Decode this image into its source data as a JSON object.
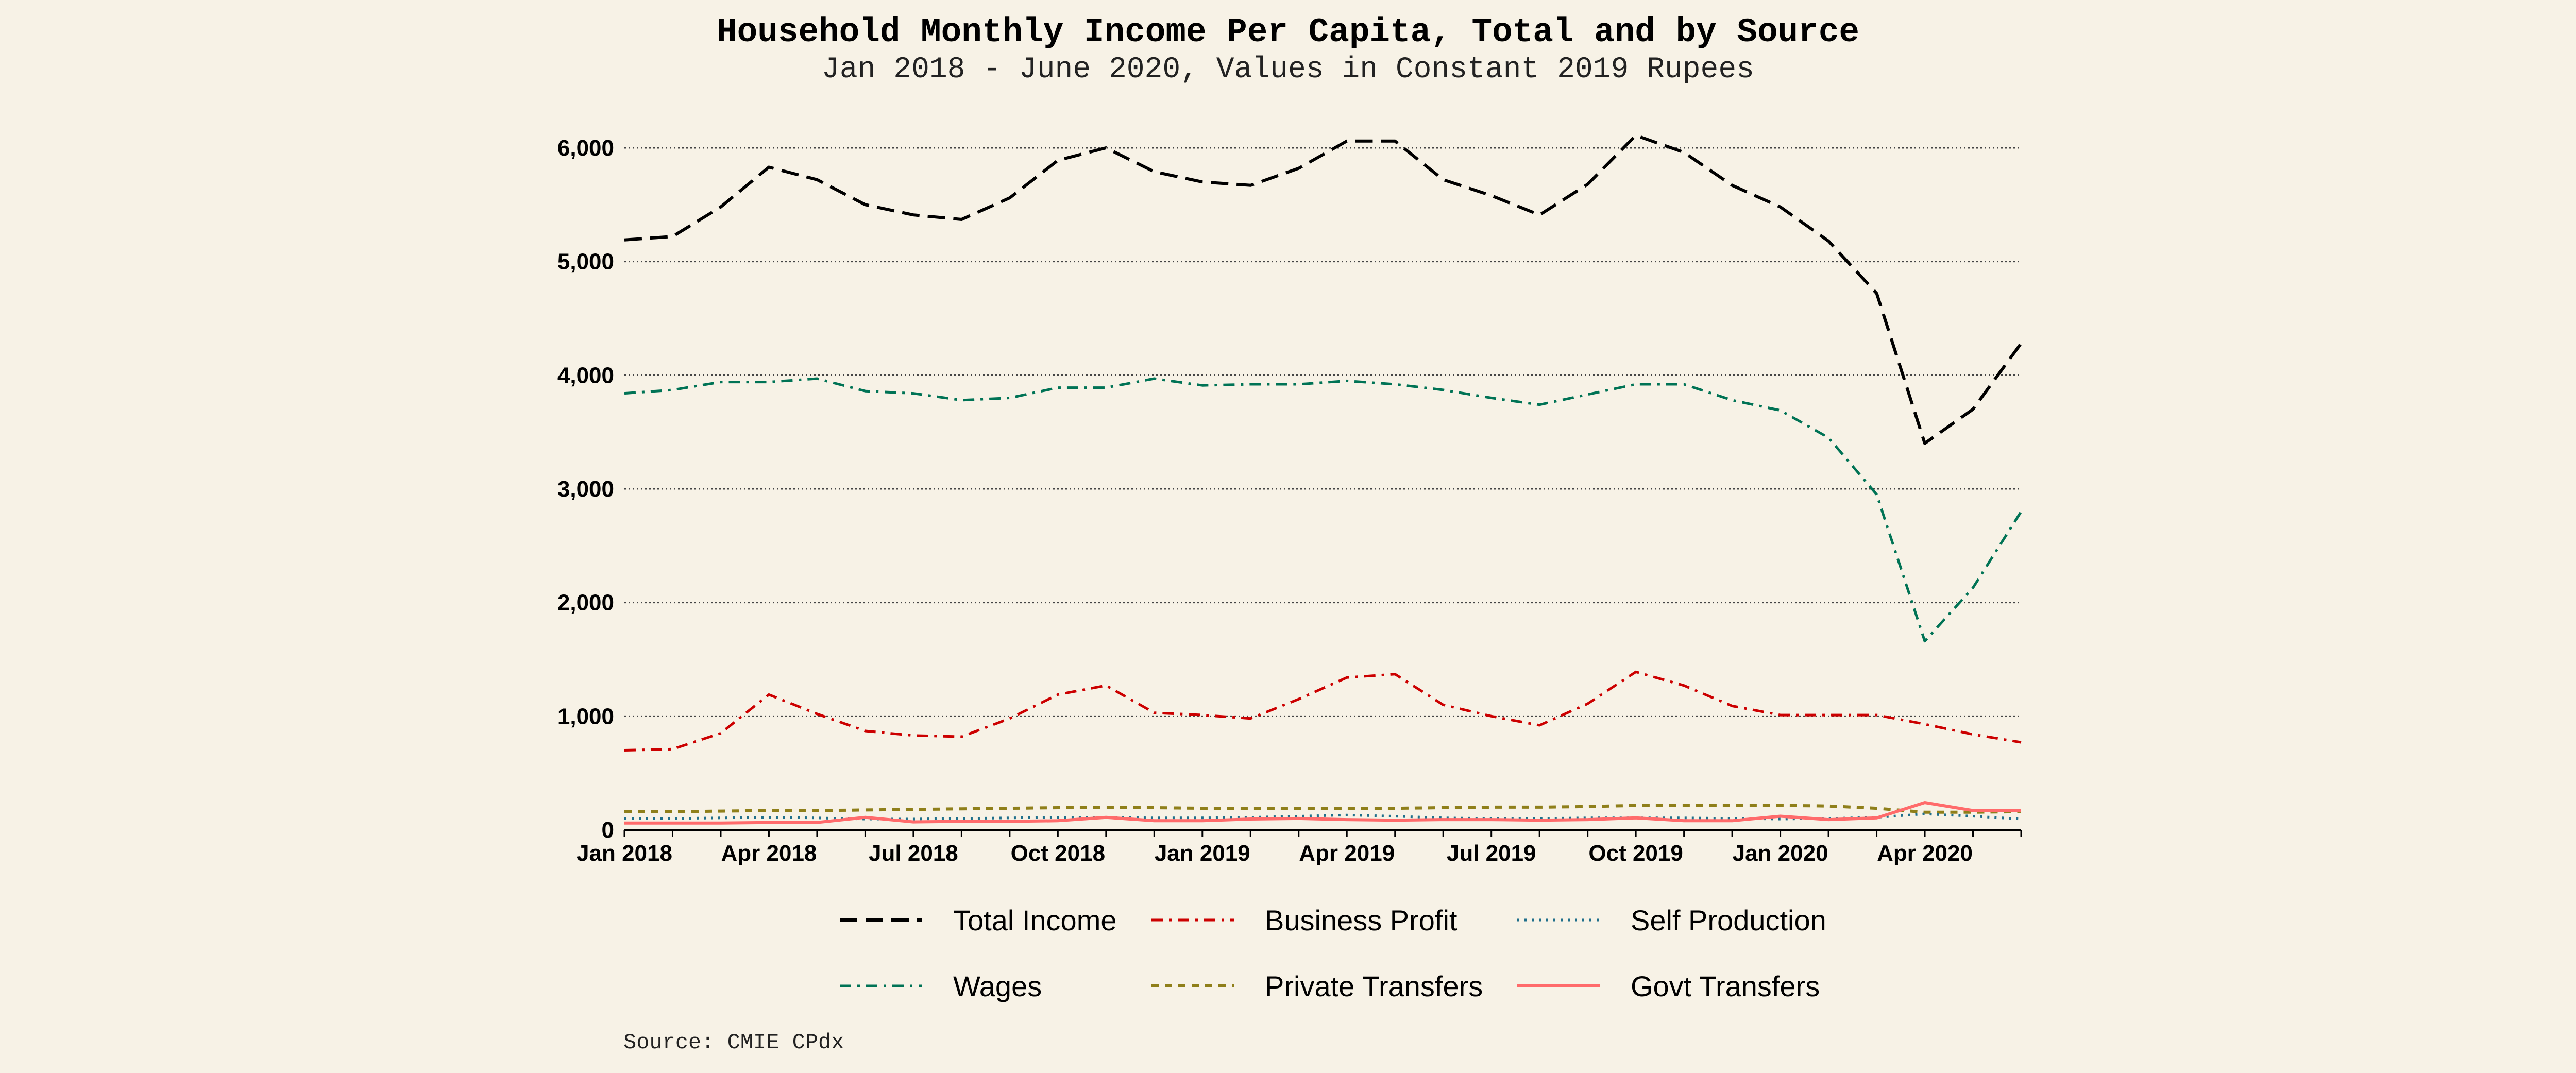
{
  "chart_data": {
    "type": "line",
    "title": "Household Monthly Income Per Capita, Total and by Source",
    "subtitle": "Jan 2018 - June 2020, Values in Constant 2019 Rupees",
    "source": "Source: CMIE CPdx",
    "xlabel": "",
    "ylabel": "",
    "ylim": [
      0,
      6000
    ],
    "y_ticks": [
      0,
      1000,
      2000,
      3000,
      4000,
      5000,
      6000
    ],
    "y_tick_labels": [
      "0",
      "1,000",
      "2,000",
      "3,000",
      "4,000",
      "5,000",
      "6,000"
    ],
    "x_tick_labels": [
      "Jan 2018",
      "Apr 2018",
      "Jul 2018",
      "Oct 2018",
      "Jan 2019",
      "Apr 2019",
      "Jul 2019",
      "Oct 2019",
      "Jan 2020",
      "Apr 2020"
    ],
    "x": [
      "2018-01",
      "2018-02",
      "2018-03",
      "2018-04",
      "2018-05",
      "2018-06",
      "2018-07",
      "2018-08",
      "2018-09",
      "2018-10",
      "2018-11",
      "2018-12",
      "2019-01",
      "2019-02",
      "2019-03",
      "2019-04",
      "2019-05",
      "2019-06",
      "2019-07",
      "2019-08",
      "2019-09",
      "2019-10",
      "2019-11",
      "2019-12",
      "2020-01",
      "2020-02",
      "2020-03",
      "2020-04",
      "2020-05",
      "2020-06"
    ],
    "grid": "horizontal dotted",
    "legend_position": "bottom",
    "series": [
      {
        "name": "Total Income",
        "color": "#000000",
        "dash": "long-dash",
        "values": [
          5190,
          5220,
          5480,
          5830,
          5720,
          5500,
          5410,
          5370,
          5560,
          5890,
          6000,
          5790,
          5700,
          5670,
          5820,
          6060,
          6060,
          5720,
          5580,
          5410,
          5680,
          6110,
          5960,
          5670,
          5480,
          5180,
          4720,
          3400,
          3700,
          4280
        ]
      },
      {
        "name": "Business Profit",
        "color": "#cc0000",
        "dash": "dash-dot",
        "values": [
          700,
          710,
          850,
          1190,
          1020,
          870,
          830,
          820,
          980,
          1190,
          1270,
          1030,
          1010,
          980,
          1150,
          1340,
          1370,
          1100,
          1000,
          920,
          1110,
          1390,
          1270,
          1090,
          1010,
          1010,
          1010,
          930,
          840,
          770
        ]
      },
      {
        "name": "Self Production",
        "color": "#1f6f8b",
        "dash": "dotted",
        "values": [
          100,
          100,
          105,
          110,
          105,
          95,
          95,
          100,
          105,
          110,
          110,
          105,
          105,
          110,
          120,
          130,
          120,
          105,
          100,
          100,
          105,
          105,
          105,
          100,
          95,
          100,
          110,
          140,
          120,
          95
        ]
      },
      {
        "name": "Wages",
        "color": "#007355",
        "dash": "dash-dot",
        "values": [
          3840,
          3870,
          3940,
          3940,
          3970,
          3860,
          3840,
          3780,
          3800,
          3890,
          3890,
          3970,
          3910,
          3920,
          3920,
          3950,
          3920,
          3870,
          3800,
          3740,
          3830,
          3920,
          3920,
          3780,
          3690,
          3450,
          2950,
          1660,
          2130,
          2800
        ]
      },
      {
        "name": "Private Transfers",
        "color": "#8f7f1a",
        "dash": "short-dash",
        "values": [
          160,
          160,
          165,
          170,
          170,
          175,
          180,
          185,
          190,
          195,
          195,
          195,
          190,
          190,
          190,
          190,
          190,
          195,
          200,
          200,
          205,
          215,
          215,
          215,
          215,
          210,
          190,
          155,
          155,
          160
        ]
      },
      {
        "name": "Govt Transfers",
        "color": "#ff6b6b",
        "dash": "solid",
        "values": [
          60,
          60,
          60,
          65,
          65,
          110,
          70,
          75,
          75,
          80,
          110,
          80,
          80,
          95,
          100,
          90,
          85,
          90,
          90,
          85,
          90,
          105,
          80,
          80,
          120,
          90,
          105,
          240,
          170,
          170
        ]
      }
    ]
  }
}
